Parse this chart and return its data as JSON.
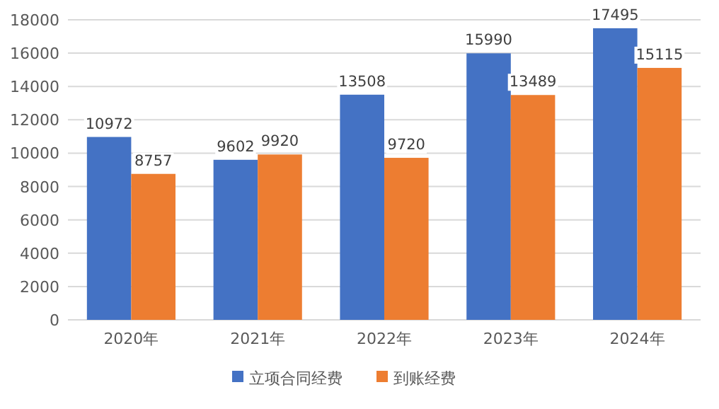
{
  "chart_data": {
    "type": "bar",
    "categories": [
      "2020年",
      "2021年",
      "2022年",
      "2023年",
      "2024年"
    ],
    "series": [
      {
        "name": "立项合同经费",
        "color": "#4472c4",
        "values": [
          10972,
          9602,
          13508,
          15990,
          17495
        ]
      },
      {
        "name": "到账经费",
        "color": "#ed7d31",
        "values": [
          8757,
          9920,
          9720,
          13489,
          15115
        ]
      }
    ],
    "ylim": [
      0,
      18000
    ],
    "yticks": [
      0,
      2000,
      4000,
      6000,
      8000,
      10000,
      12000,
      14000,
      16000,
      18000
    ],
    "grid": "y",
    "legend": "bottom",
    "data_labels": true
  }
}
